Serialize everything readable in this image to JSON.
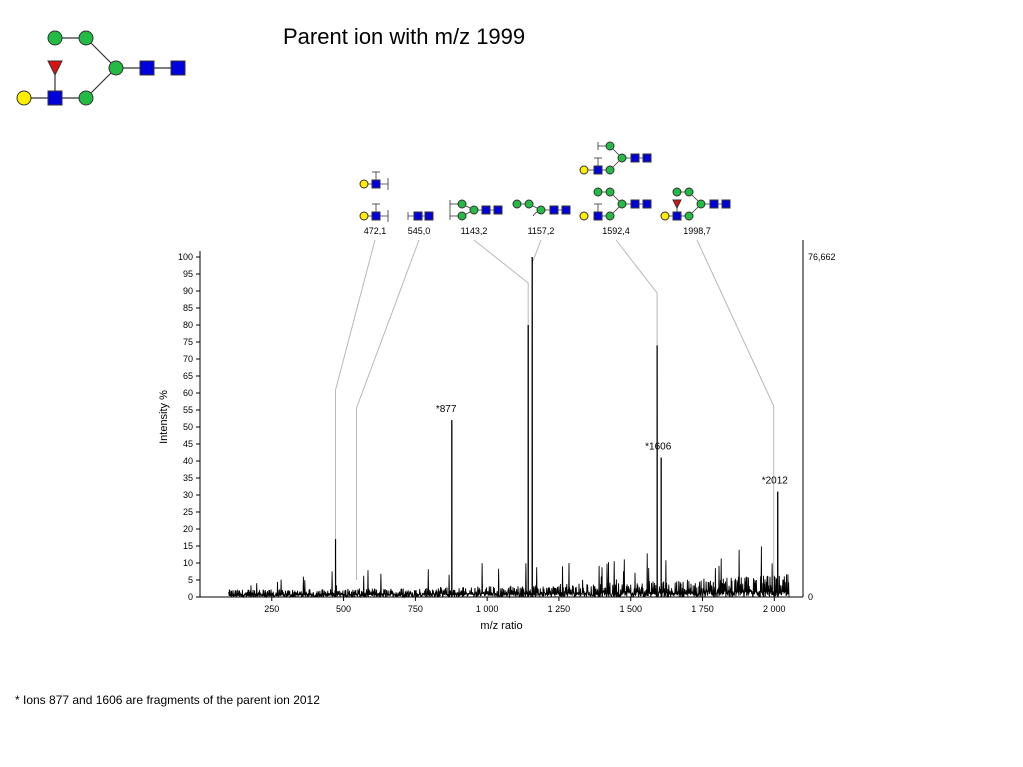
{
  "title": "Parent ion with m/z 1999",
  "footnote": "* Ions 877 and 1606 are fragments of the parent ion 2012",
  "colors": {
    "green": "#22bb44",
    "blue": "#0000dd",
    "yellow": "#ffee00",
    "red": "#dd1111",
    "spectrum": "#000000",
    "leader": "#b8b8b8"
  },
  "chart_data": {
    "type": "line",
    "xlabel": "m/z ratio",
    "ylabel": "Intensity %",
    "xlim": [
      0,
      2100
    ],
    "ylim": [
      0,
      100
    ],
    "x_ticks": [
      250,
      500,
      750,
      1000,
      1250,
      1500,
      1750,
      2000
    ],
    "x_tick_labels": [
      "250",
      "500",
      "750",
      "1 000",
      "1 250",
      "1 500",
      "1 750",
      "2 000"
    ],
    "y_ticks": [
      0,
      5,
      10,
      15,
      20,
      25,
      30,
      35,
      40,
      45,
      50,
      55,
      60,
      65,
      70,
      75,
      80,
      85,
      90,
      95,
      100
    ],
    "y_tick_labels": [
      "0",
      "5",
      "10",
      "15",
      "20",
      "25",
      "30",
      "35",
      "40",
      "45",
      "50",
      "55",
      "60",
      "65",
      "70",
      "75",
      "80",
      "85",
      "90",
      "95",
      "100"
    ],
    "right_axis_labels": {
      "top": "76,662",
      "bottom": "0"
    },
    "peaks": [
      {
        "x": 472,
        "y": 17
      },
      {
        "x": 877,
        "y": 52
      },
      {
        "x": 1143,
        "y": 80
      },
      {
        "x": 1157,
        "y": 100
      },
      {
        "x": 1592,
        "y": 74
      },
      {
        "x": 1606,
        "y": 41
      },
      {
        "x": 2012,
        "y": 31
      }
    ],
    "noise_x_range": [
      100,
      2050
    ],
    "peak_annotations": [
      {
        "x": 877,
        "y": 52,
        "label": "*877"
      },
      {
        "x": 1606,
        "y": 41,
        "label": "*1606"
      },
      {
        "x": 2012,
        "y": 31,
        "label": "*2012"
      }
    ],
    "fragment_labels": [
      {
        "label": "472,1",
        "x": 472,
        "y": 17
      },
      {
        "label": "545,0",
        "x": 545,
        "y": 6
      },
      {
        "label": "1143,2",
        "x": 1143,
        "y": 80
      },
      {
        "label": "1157,2",
        "x": 1157,
        "y": 100
      },
      {
        "label": "1592,4",
        "x": 1592,
        "y": 74
      },
      {
        "label": "1998,7",
        "x": 1998,
        "y": 6
      }
    ]
  }
}
